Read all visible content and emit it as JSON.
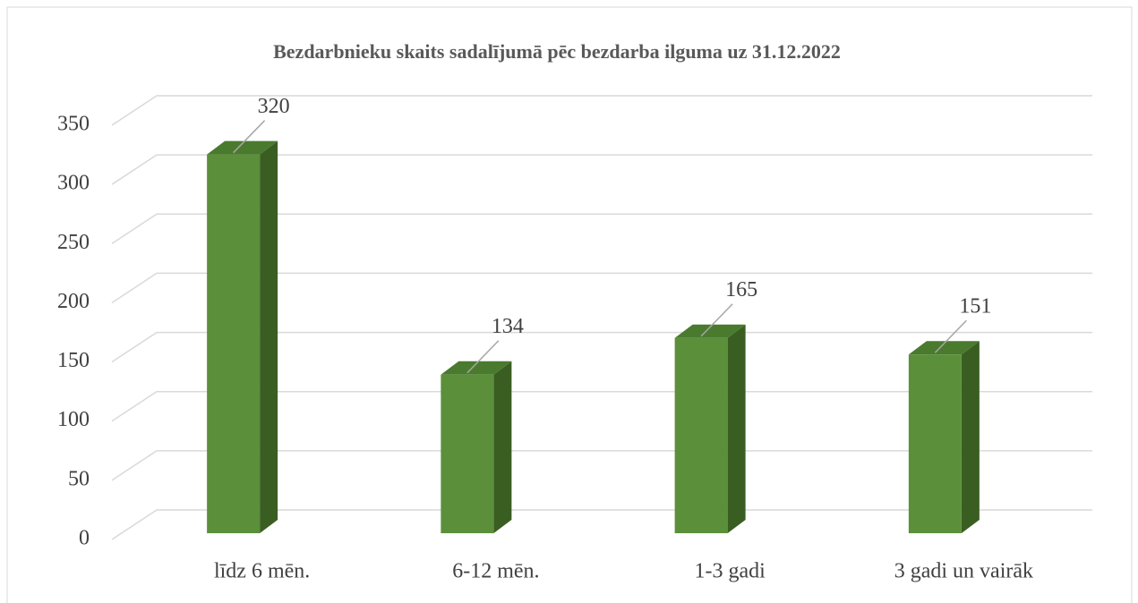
{
  "chart_data": {
    "type": "bar",
    "title": "Bezdarbnieku skaits sadalījumā pēc bezdarba ilguma uz 31.12.2022",
    "categories": [
      "līdz 6 mēn.",
      "6-12 mēn.",
      "1-3 gadi",
      "3 gadi un vairāk"
    ],
    "values": [
      320,
      134,
      165,
      151
    ],
    "color": "#5b8f3a",
    "ylim": [
      0,
      350
    ],
    "yticks": [
      0,
      50,
      100,
      150,
      200,
      250,
      300,
      350
    ],
    "grid": true
  }
}
